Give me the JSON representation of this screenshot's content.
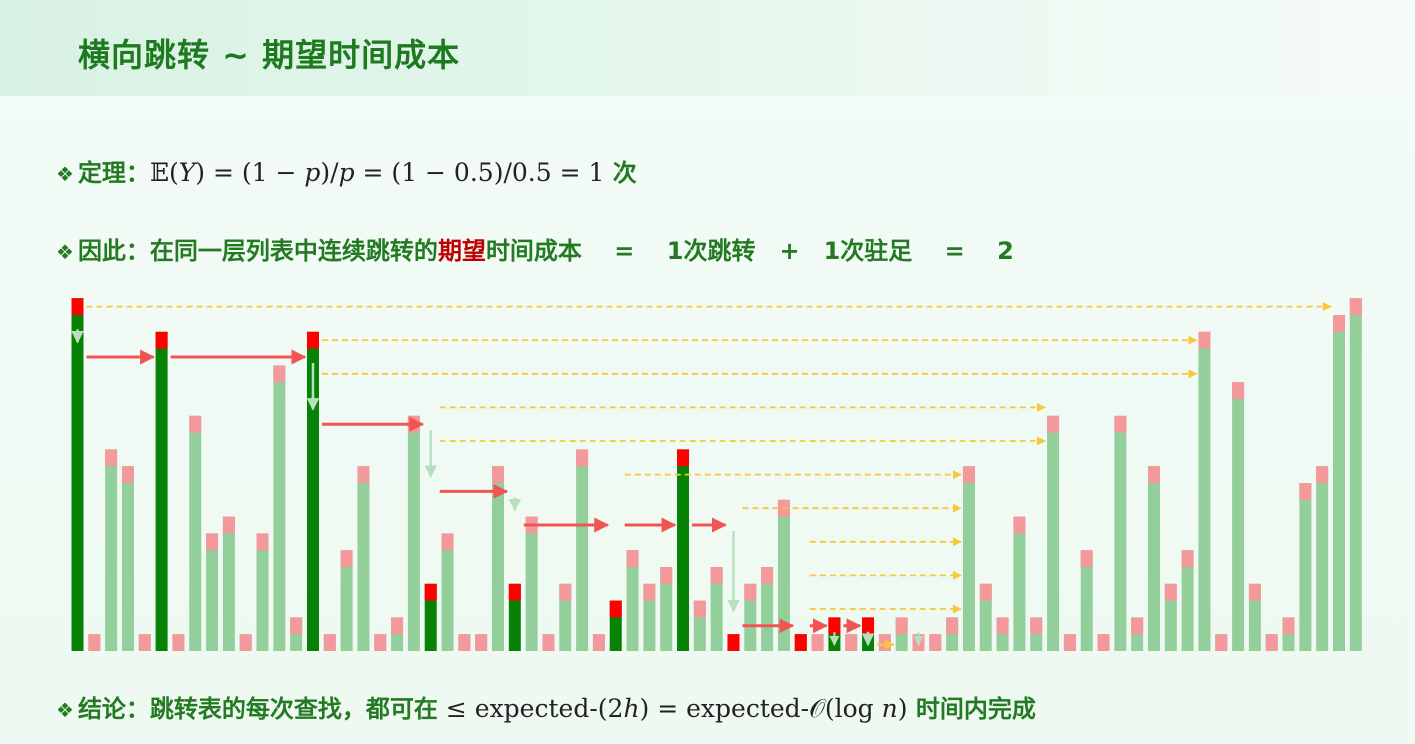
{
  "header": {
    "title": "横向跳转 ~ 期望时间成本"
  },
  "theorem": {
    "bullet": "❖",
    "label": "定理：",
    "expr_lhs": "𝔼(",
    "expr_var": "Y",
    "expr_rhs": ") = (1 − ",
    "expr_p1": "p",
    "expr_mid": ")/",
    "expr_p2": "p",
    "expr_tail": " = (1 − 0.5)/0.5 = 1",
    "unit": " 次"
  },
  "therefore": {
    "bullet": "❖",
    "text_pre": "因此：在同一层列表中连续跳转的",
    "text_highlight": "期望",
    "text_post": "时间成本　 =　 1次跳转　+　1次驻足　 =　 2"
  },
  "conclusion": {
    "bullet": "❖",
    "label": "结论：跳转表的每次查找，都可在",
    "expr_a": " ≤ expected-(2",
    "expr_h": "h",
    "expr_b": ") = expected-𝒪(log ",
    "expr_n": "n",
    "expr_c": ")",
    "text_post": " 时间内完成"
  },
  "colors": {
    "accent_green": "#078207",
    "light_green": "#93cf9b",
    "red_cap": "#ff0000",
    "pink_cap": "#f4999b",
    "red_arrow": "#f25454",
    "yellow_arrow": "#f7c83a",
    "down_arrow": "#b8e0bf",
    "title_green": "#1e7a1e"
  },
  "chart_data": {
    "type": "bar",
    "title": "",
    "xlabel": "",
    "ylabel": "",
    "note": "skip list towers; values = tower height in levels",
    "heights": [
      21,
      1,
      12,
      11,
      1,
      19,
      1,
      14,
      7,
      8,
      1,
      7,
      17,
      2,
      19,
      1,
      6,
      11,
      1,
      2,
      14,
      4,
      7,
      1,
      1,
      11,
      4,
      8,
      1,
      4,
      12,
      1,
      3,
      6,
      4,
      5,
      12,
      3,
      5,
      1,
      4,
      5,
      9,
      1,
      1,
      2,
      1,
      2,
      1,
      2,
      1,
      1,
      2,
      11,
      4,
      2,
      8,
      2,
      14,
      1,
      6,
      1,
      14,
      2,
      11,
      4,
      6,
      19,
      1,
      16,
      4,
      1,
      2,
      10,
      11,
      20,
      21
    ],
    "path_nodes": [
      0,
      5,
      14,
      21,
      26,
      32,
      36,
      39,
      43,
      45,
      47
    ],
    "path_levels": [
      20,
      18,
      18,
      14,
      10,
      8,
      8,
      8,
      2,
      2,
      2
    ]
  }
}
